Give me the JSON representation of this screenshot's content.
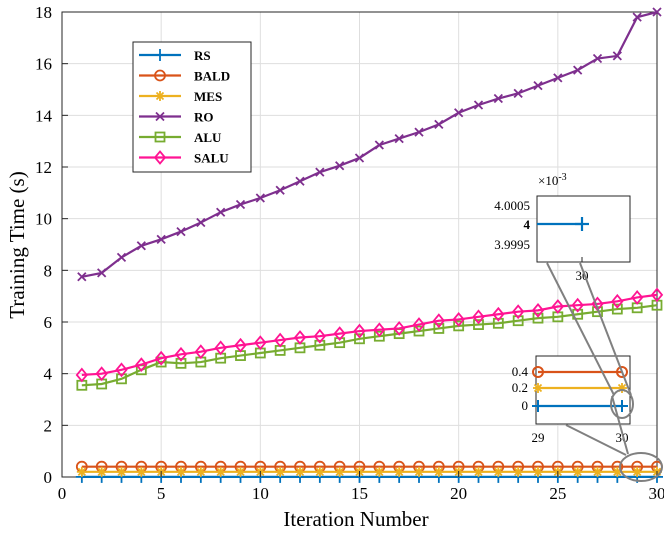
{
  "chart_data": {
    "type": "line",
    "xlabel": "Iteration Number",
    "ylabel": "Training Time (s)",
    "xlim": [
      0,
      30
    ],
    "ylim": [
      0,
      18
    ],
    "xticks": [
      0,
      5,
      10,
      15,
      20,
      25,
      30
    ],
    "yticks": [
      0,
      2,
      4,
      6,
      8,
      10,
      12,
      14,
      16,
      18
    ],
    "grid": true,
    "legend_position": "top-left",
    "x": [
      1,
      2,
      3,
      4,
      5,
      6,
      7,
      8,
      9,
      10,
      11,
      12,
      13,
      14,
      15,
      16,
      17,
      18,
      19,
      20,
      21,
      22,
      23,
      24,
      25,
      26,
      27,
      28,
      29,
      30
    ],
    "series": [
      {
        "name": "RS",
        "color": "#0072bd",
        "marker": "plus",
        "values": [
          0.004,
          0.004,
          0.004,
          0.004,
          0.004,
          0.004,
          0.004,
          0.004,
          0.004,
          0.004,
          0.004,
          0.004,
          0.004,
          0.004,
          0.004,
          0.004,
          0.004,
          0.004,
          0.004,
          0.004,
          0.004,
          0.004,
          0.004,
          0.004,
          0.004,
          0.004,
          0.004,
          0.004,
          0.004,
          0.004
        ]
      },
      {
        "name": "BALD",
        "color": "#d95319",
        "marker": "circle",
        "values": [
          0.4,
          0.4,
          0.4,
          0.4,
          0.4,
          0.4,
          0.4,
          0.4,
          0.4,
          0.4,
          0.4,
          0.4,
          0.4,
          0.4,
          0.4,
          0.4,
          0.4,
          0.4,
          0.4,
          0.4,
          0.4,
          0.4,
          0.4,
          0.4,
          0.4,
          0.4,
          0.4,
          0.4,
          0.4,
          0.4
        ]
      },
      {
        "name": "MES",
        "color": "#edb120",
        "marker": "asterisk",
        "values": [
          0.2,
          0.2,
          0.2,
          0.2,
          0.2,
          0.2,
          0.2,
          0.2,
          0.2,
          0.2,
          0.2,
          0.2,
          0.2,
          0.2,
          0.2,
          0.2,
          0.2,
          0.2,
          0.2,
          0.2,
          0.2,
          0.2,
          0.2,
          0.2,
          0.2,
          0.2,
          0.2,
          0.2,
          0.2,
          0.2
        ]
      },
      {
        "name": "RO",
        "color": "#7e2f8e",
        "marker": "x",
        "values": [
          7.75,
          7.9,
          8.5,
          8.95,
          9.2,
          9.5,
          9.85,
          10.25,
          10.55,
          10.8,
          11.1,
          11.45,
          11.8,
          12.05,
          12.35,
          12.85,
          13.1,
          13.35,
          13.65,
          14.1,
          14.4,
          14.65,
          14.85,
          15.15,
          15.45,
          15.75,
          16.2,
          16.3,
          17.8,
          18.0
        ]
      },
      {
        "name": "ALU",
        "color": "#77ac30",
        "marker": "square",
        "values": [
          3.55,
          3.6,
          3.8,
          4.15,
          4.45,
          4.4,
          4.45,
          4.6,
          4.7,
          4.8,
          4.9,
          5.0,
          5.1,
          5.2,
          5.35,
          5.45,
          5.55,
          5.65,
          5.75,
          5.85,
          5.9,
          5.95,
          6.05,
          6.15,
          6.2,
          6.3,
          6.4,
          6.5,
          6.55,
          6.65
        ]
      },
      {
        "name": "SALU",
        "color": "#ff1493",
        "marker": "diamond",
        "values": [
          3.95,
          4.0,
          4.15,
          4.35,
          4.6,
          4.75,
          4.85,
          5.0,
          5.1,
          5.2,
          5.3,
          5.4,
          5.45,
          5.55,
          5.65,
          5.7,
          5.75,
          5.9,
          6.05,
          6.1,
          6.2,
          6.3,
          6.4,
          6.45,
          6.6,
          6.65,
          6.7,
          6.8,
          6.95,
          7.05
        ]
      }
    ],
    "inset_upper": {
      "exponent_label": "×10",
      "exponent_power": "-3",
      "yticks": [
        "4.0005",
        "4",
        "3.9995"
      ],
      "xticks": [
        "30"
      ],
      "series": "RS",
      "x": [
        29,
        30
      ],
      "values": [
        4,
        4
      ]
    },
    "inset_lower": {
      "yticks": [
        "0.4",
        "0.2",
        "0"
      ],
      "xticks": [
        "29",
        "30"
      ],
      "series": [
        "RS",
        "BALD",
        "MES"
      ],
      "x": [
        29,
        30
      ]
    }
  }
}
